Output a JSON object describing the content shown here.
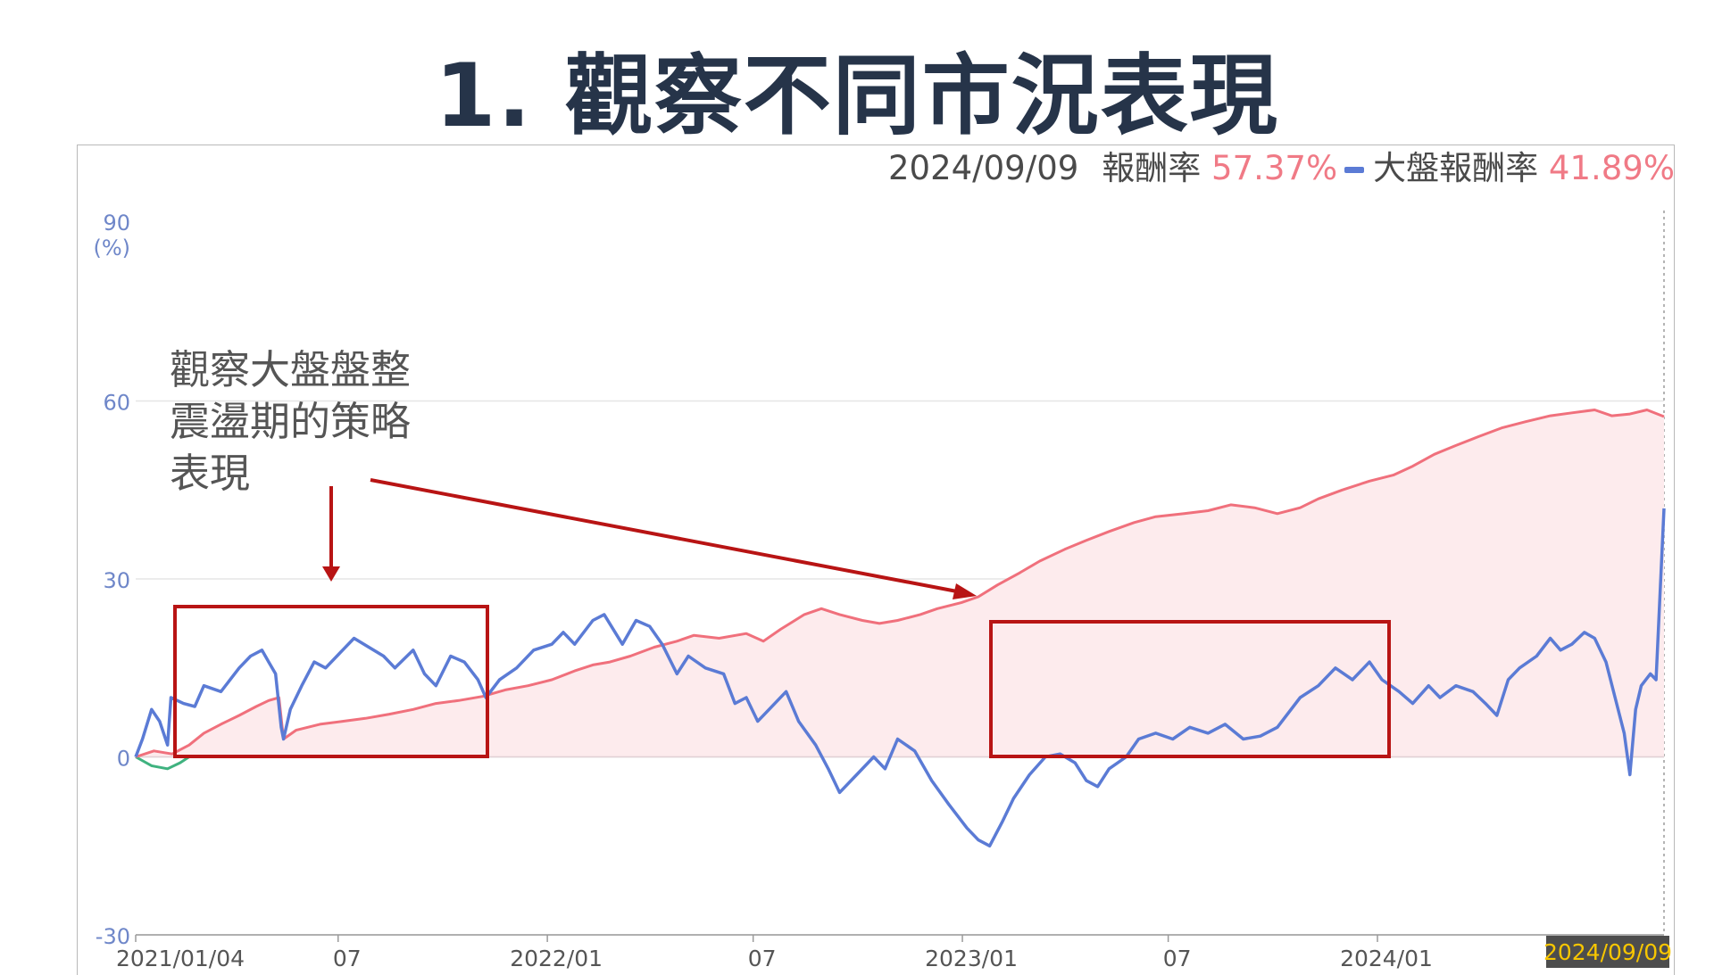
{
  "page": {
    "title": "1. 觀察不同市況表現"
  },
  "legend": {
    "date": "2024/09/09",
    "strategy_label": "報酬率",
    "strategy_value": "57.37%",
    "market_label": "大盤報酬率",
    "market_value": "41.89%"
  },
  "annotation": {
    "text": "觀察大盤盤整\n震盪期的策略\n表現"
  },
  "colors": {
    "strategy": "#f0707c",
    "strategy_fill": "#fdebed",
    "market": "#5b7bd5",
    "market_negative_early": "#3fb27f",
    "annotation": "#b81414",
    "date_badge_bg": "#4d4d4d",
    "date_badge_text": "#f7c600"
  },
  "chart_data": {
    "type": "line",
    "yunit": "(%)",
    "ylim": [
      -30,
      90
    ],
    "yticks": [
      "90",
      "60",
      "30",
      "0",
      "-30"
    ],
    "xlabels": [
      "2021/01/04",
      "07",
      "2022/01",
      "07",
      "2023/01",
      "07",
      "2024/01"
    ],
    "end_date_label": "2024/09/09",
    "x_start": "2021-01-04",
    "x_end": "2024-09-09",
    "grid": true,
    "series": [
      {
        "name": "報酬率",
        "fill": true,
        "points": [
          [
            "2021-01-04",
            0
          ],
          [
            "2021-01-20",
            1
          ],
          [
            "2021-02-05",
            0.5
          ],
          [
            "2021-02-20",
            2
          ],
          [
            "2021-03-05",
            4
          ],
          [
            "2021-03-20",
            5.5
          ],
          [
            "2021-04-05",
            7
          ],
          [
            "2021-04-20",
            8.5
          ],
          [
            "2021-05-01",
            9.5
          ],
          [
            "2021-05-10",
            10
          ],
          [
            "2021-05-14",
            3
          ],
          [
            "2021-05-25",
            4.5
          ],
          [
            "2021-06-15",
            5.5
          ],
          [
            "2021-07-05",
            6
          ],
          [
            "2021-07-25",
            6.5
          ],
          [
            "2021-08-15",
            7.2
          ],
          [
            "2021-09-05",
            8
          ],
          [
            "2021-09-25",
            9
          ],
          [
            "2021-10-15",
            9.5
          ],
          [
            "2021-11-05",
            10.2
          ],
          [
            "2021-11-25",
            11.3
          ],
          [
            "2021-12-15",
            12
          ],
          [
            "2022-01-05",
            13
          ],
          [
            "2022-01-25",
            14.5
          ],
          [
            "2022-02-10",
            15.5
          ],
          [
            "2022-02-25",
            16
          ],
          [
            "2022-03-15",
            17
          ],
          [
            "2022-04-05",
            18.5
          ],
          [
            "2022-04-25",
            19.5
          ],
          [
            "2022-05-10",
            20.5
          ],
          [
            "2022-06-01",
            20
          ],
          [
            "2022-06-25",
            20.8
          ],
          [
            "2022-07-10",
            19.5
          ],
          [
            "2022-07-25",
            21.5
          ],
          [
            "2022-08-15",
            24
          ],
          [
            "2022-08-30",
            25
          ],
          [
            "2022-09-15",
            24
          ],
          [
            "2022-10-05",
            23
          ],
          [
            "2022-10-20",
            22.5
          ],
          [
            "2022-11-05",
            23
          ],
          [
            "2022-11-25",
            24
          ],
          [
            "2022-12-10",
            25
          ],
          [
            "2022-12-31",
            26
          ],
          [
            "2023-01-15",
            27
          ],
          [
            "2023-02-01",
            29
          ],
          [
            "2023-02-20",
            31
          ],
          [
            "2023-03-10",
            33
          ],
          [
            "2023-04-01",
            35
          ],
          [
            "2023-04-20",
            36.5
          ],
          [
            "2023-05-10",
            38
          ],
          [
            "2023-06-01",
            39.5
          ],
          [
            "2023-06-20",
            40.5
          ],
          [
            "2023-07-15",
            41
          ],
          [
            "2023-08-05",
            41.5
          ],
          [
            "2023-08-25",
            42.5
          ],
          [
            "2023-09-15",
            42
          ],
          [
            "2023-10-05",
            41
          ],
          [
            "2023-10-25",
            42
          ],
          [
            "2023-11-10",
            43.5
          ],
          [
            "2023-12-01",
            45
          ],
          [
            "2023-12-25",
            46.5
          ],
          [
            "2024-01-15",
            47.5
          ],
          [
            "2024-02-01",
            49
          ],
          [
            "2024-02-20",
            51
          ],
          [
            "2024-03-10",
            52.5
          ],
          [
            "2024-03-30",
            54
          ],
          [
            "2024-04-20",
            55.5
          ],
          [
            "2024-05-10",
            56.5
          ],
          [
            "2024-06-01",
            57.5
          ],
          [
            "2024-06-20",
            58
          ],
          [
            "2024-07-10",
            58.5
          ],
          [
            "2024-07-25",
            57.5
          ],
          [
            "2024-08-10",
            57.8
          ],
          [
            "2024-08-25",
            58.5
          ],
          [
            "2024-09-09",
            57.37
          ]
        ]
      },
      {
        "name": "大盤報酬率",
        "fill": false,
        "points": [
          [
            "2021-01-04",
            0
          ],
          [
            "2021-01-10",
            3
          ],
          [
            "2021-01-18",
            8
          ],
          [
            "2021-01-25",
            6
          ],
          [
            "2021-02-01",
            2
          ],
          [
            "2021-02-04",
            10
          ],
          [
            "2021-02-15",
            9
          ],
          [
            "2021-02-25",
            8.5
          ],
          [
            "2021-03-05",
            12
          ],
          [
            "2021-03-20",
            11
          ],
          [
            "2021-04-05",
            15
          ],
          [
            "2021-04-15",
            17
          ],
          [
            "2021-04-25",
            18
          ],
          [
            "2021-05-01",
            16
          ],
          [
            "2021-05-07",
            14
          ],
          [
            "2021-05-12",
            5
          ],
          [
            "2021-05-14",
            3
          ],
          [
            "2021-05-20",
            8
          ],
          [
            "2021-05-30",
            12
          ],
          [
            "2021-06-10",
            16
          ],
          [
            "2021-06-20",
            15
          ],
          [
            "2021-07-05",
            18
          ],
          [
            "2021-07-15",
            20
          ],
          [
            "2021-07-28",
            18.5
          ],
          [
            "2021-08-10",
            17
          ],
          [
            "2021-08-20",
            15
          ],
          [
            "2021-09-05",
            18
          ],
          [
            "2021-09-15",
            14
          ],
          [
            "2021-09-25",
            12
          ],
          [
            "2021-10-08",
            17
          ],
          [
            "2021-10-20",
            16
          ],
          [
            "2021-11-01",
            13
          ],
          [
            "2021-11-08",
            10
          ],
          [
            "2021-11-20",
            13
          ],
          [
            "2021-12-05",
            15
          ],
          [
            "2021-12-20",
            18
          ],
          [
            "2022-01-05",
            19
          ],
          [
            "2022-01-15",
            21
          ],
          [
            "2022-01-25",
            19
          ],
          [
            "2022-02-10",
            23
          ],
          [
            "2022-02-20",
            24
          ],
          [
            "2022-03-08",
            19
          ],
          [
            "2022-03-20",
            23
          ],
          [
            "2022-04-01",
            22
          ],
          [
            "2022-04-12",
            19
          ],
          [
            "2022-04-25",
            14
          ],
          [
            "2022-05-05",
            17
          ],
          [
            "2022-05-20",
            15
          ],
          [
            "2022-06-05",
            14
          ],
          [
            "2022-06-15",
            9
          ],
          [
            "2022-06-25",
            10
          ],
          [
            "2022-07-05",
            6
          ],
          [
            "2022-07-15",
            8
          ],
          [
            "2022-07-30",
            11
          ],
          [
            "2022-08-10",
            6
          ],
          [
            "2022-08-25",
            2
          ],
          [
            "2022-09-05",
            -2
          ],
          [
            "2022-09-15",
            -6
          ],
          [
            "2022-09-30",
            -3
          ],
          [
            "2022-10-15",
            0
          ],
          [
            "2022-10-25",
            -2
          ],
          [
            "2022-11-05",
            3
          ],
          [
            "2022-11-20",
            1
          ],
          [
            "2022-12-05",
            -4
          ],
          [
            "2022-12-20",
            -8
          ],
          [
            "2023-01-05",
            -12
          ],
          [
            "2023-01-15",
            -14
          ],
          [
            "2023-01-25",
            -15
          ],
          [
            "2023-02-05",
            -11
          ],
          [
            "2023-02-15",
            -7
          ],
          [
            "2023-03-01",
            -3
          ],
          [
            "2023-03-15",
            0
          ],
          [
            "2023-03-28",
            0.5
          ],
          [
            "2023-04-10",
            -1
          ],
          [
            "2023-04-20",
            -4
          ],
          [
            "2023-04-30",
            -5
          ],
          [
            "2023-05-10",
            -2
          ],
          [
            "2023-05-25",
            0
          ],
          [
            "2023-06-05",
            3
          ],
          [
            "2023-06-20",
            4
          ],
          [
            "2023-07-05",
            3
          ],
          [
            "2023-07-20",
            5
          ],
          [
            "2023-08-05",
            4
          ],
          [
            "2023-08-20",
            5.5
          ],
          [
            "2023-09-05",
            3
          ],
          [
            "2023-09-20",
            3.5
          ],
          [
            "2023-10-05",
            5
          ],
          [
            "2023-10-25",
            10
          ],
          [
            "2023-11-10",
            12
          ],
          [
            "2023-11-25",
            15
          ],
          [
            "2023-12-10",
            13
          ],
          [
            "2023-12-25",
            16
          ],
          [
            "2024-01-05",
            13
          ],
          [
            "2024-01-20",
            11
          ],
          [
            "2024-02-01",
            9
          ],
          [
            "2024-02-15",
            12
          ],
          [
            "2024-02-25",
            10
          ],
          [
            "2024-03-10",
            12
          ],
          [
            "2024-03-25",
            11
          ],
          [
            "2024-04-05",
            9
          ],
          [
            "2024-04-15",
            7
          ],
          [
            "2024-04-25",
            13
          ],
          [
            "2024-05-05",
            15
          ],
          [
            "2024-05-20",
            17
          ],
          [
            "2024-06-01",
            20
          ],
          [
            "2024-06-10",
            18
          ],
          [
            "2024-06-20",
            19
          ],
          [
            "2024-07-01",
            21
          ],
          [
            "2024-07-10",
            20
          ],
          [
            "2024-07-20",
            16
          ],
          [
            "2024-07-28",
            10
          ],
          [
            "2024-08-05",
            4
          ],
          [
            "2024-08-10",
            -3
          ],
          [
            "2024-08-15",
            8
          ],
          [
            "2024-08-20",
            12
          ],
          [
            "2024-08-28",
            14
          ],
          [
            "2024-09-02",
            13
          ],
          [
            "2024-09-09",
            41.89
          ]
        ]
      }
    ]
  }
}
